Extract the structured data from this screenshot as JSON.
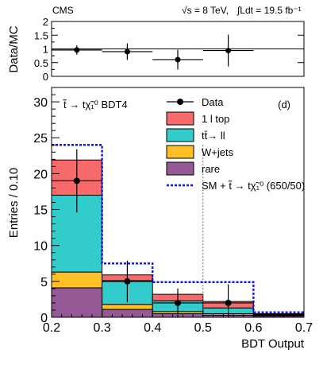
{
  "header": {
    "experiment": "CMS",
    "sqrt_s": "√s = 8 TeV,",
    "lumi": "∫Ldt = 19.5 fb⁻¹"
  },
  "chart_data": [
    {
      "type": "ratio",
      "ylabel": "Data/MC",
      "ylim": [
        0,
        2
      ],
      "yticks": [
        "0",
        "0.5",
        "1",
        "1.5",
        "2"
      ],
      "reference_line": 1,
      "x_edges": [
        0.2,
        0.3,
        0.4,
        0.5,
        0.6
      ],
      "points": [
        {
          "x": 0.25,
          "y": 0.96,
          "err": 0.17
        },
        {
          "x": 0.35,
          "y": 0.9,
          "err": 0.3
        },
        {
          "x": 0.45,
          "y": 0.61,
          "err": 0.36
        },
        {
          "x": 0.55,
          "y": 0.94,
          "err": 0.58
        }
      ]
    },
    {
      "type": "stacked_histogram",
      "title": "t̃ → tχ̃₁⁰ BDT4",
      "panel_label": "(d)",
      "xlabel": "BDT Output",
      "ylabel": "Entries / 0.10",
      "xlim": [
        0.2,
        0.7
      ],
      "ylim": [
        0,
        32
      ],
      "xticks": [
        "0.2",
        "0.3",
        "0.4",
        "0.5",
        "0.6",
        "0.7"
      ],
      "yticks": [
        "0",
        "5",
        "10",
        "15",
        "20",
        "25",
        "30"
      ],
      "bin_edges": [
        0.2,
        0.3,
        0.4,
        0.5,
        0.6,
        0.7
      ],
      "cut_value": 0.5,
      "series": [
        {
          "name": "rare",
          "color": "#955a95",
          "values": [
            4.1,
            1.1,
            0.5,
            0.3,
            0.2
          ]
        },
        {
          "name": "W+jets",
          "color": "#fdc127",
          "values": [
            2.2,
            0.7,
            0.3,
            0.2,
            0.1
          ]
        },
        {
          "name": "tt̄→ ll",
          "color": "#33cccc",
          "values": [
            10.7,
            3.3,
            1.5,
            0.8,
            0.1
          ]
        },
        {
          "name": "1 l top",
          "color": "#f86a6a",
          "values": [
            4.9,
            0.8,
            0.9,
            0.9,
            0.1
          ]
        }
      ],
      "signal": {
        "name": "SM + t̃ → tχ̃₁⁰ (650/50)",
        "color": "#1111ee",
        "values": [
          24.0,
          7.5,
          4.9,
          4.9,
          0.7
        ]
      },
      "data": {
        "name": "Data",
        "points": [
          {
            "x": 0.25,
            "y": 19,
            "err": 4.4
          },
          {
            "x": 0.35,
            "y": 5,
            "err": 2.9
          },
          {
            "x": 0.45,
            "y": 2,
            "err": 2.0
          },
          {
            "x": 0.55,
            "y": 2,
            "err": 2.6
          }
        ]
      },
      "legend_position": "top-right"
    }
  ]
}
